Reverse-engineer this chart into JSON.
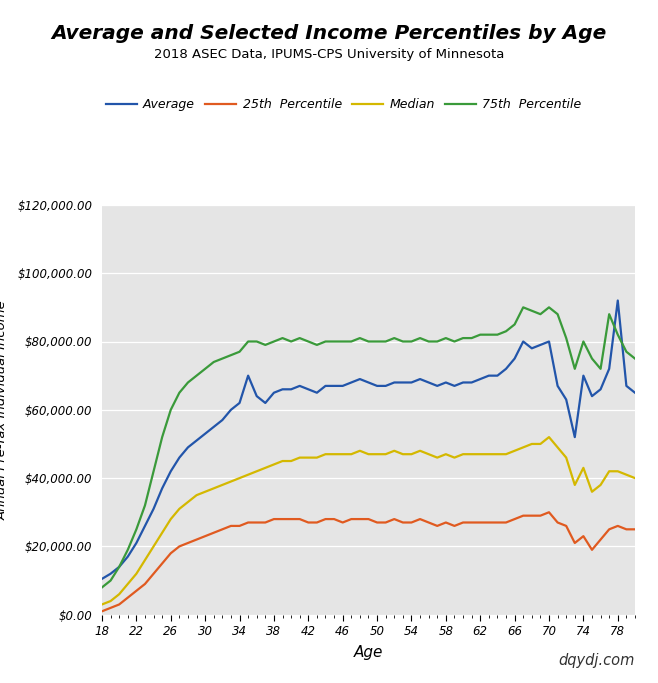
{
  "title": "Average and Selected Income Percentiles by Age",
  "subtitle": "2018 ASEC Data, IPUMS-CPS University of Minnesota",
  "xlabel": "Age",
  "ylabel": "Annual Pre-Tax Individual Income",
  "watermark": "dqydj.com",
  "bg_color": "#e5e5e5",
  "fig_bg_color": "#ffffff",
  "ylim": [
    0,
    120000
  ],
  "ytick_step": 20000,
  "ages": [
    18,
    19,
    20,
    21,
    22,
    23,
    24,
    25,
    26,
    27,
    28,
    29,
    30,
    31,
    32,
    33,
    34,
    35,
    36,
    37,
    38,
    39,
    40,
    41,
    42,
    43,
    44,
    45,
    46,
    47,
    48,
    49,
    50,
    51,
    52,
    53,
    54,
    55,
    56,
    57,
    58,
    59,
    60,
    61,
    62,
    63,
    64,
    65,
    66,
    67,
    68,
    69,
    70,
    71,
    72,
    73,
    74,
    75,
    76,
    77,
    78,
    79,
    80
  ],
  "average": [
    10500,
    12000,
    14000,
    17000,
    21000,
    26000,
    31000,
    37000,
    42000,
    46000,
    49000,
    51000,
    53000,
    55000,
    57000,
    60000,
    62000,
    70000,
    64000,
    62000,
    65000,
    66000,
    66000,
    67000,
    66000,
    65000,
    67000,
    67000,
    67000,
    68000,
    69000,
    68000,
    67000,
    67000,
    68000,
    68000,
    68000,
    69000,
    68000,
    67000,
    68000,
    67000,
    68000,
    68000,
    69000,
    70000,
    70000,
    72000,
    75000,
    80000,
    78000,
    79000,
    80000,
    67000,
    63000,
    52000,
    70000,
    64000,
    66000,
    72000,
    92000,
    67000,
    65000
  ],
  "p25": [
    1000,
    2000,
    3000,
    5000,
    7000,
    9000,
    12000,
    15000,
    18000,
    20000,
    21000,
    22000,
    23000,
    24000,
    25000,
    26000,
    26000,
    27000,
    27000,
    27000,
    28000,
    28000,
    28000,
    28000,
    27000,
    27000,
    28000,
    28000,
    27000,
    28000,
    28000,
    28000,
    27000,
    27000,
    28000,
    27000,
    27000,
    28000,
    27000,
    26000,
    27000,
    26000,
    27000,
    27000,
    27000,
    27000,
    27000,
    27000,
    28000,
    29000,
    29000,
    29000,
    30000,
    27000,
    26000,
    21000,
    23000,
    19000,
    22000,
    25000,
    26000,
    25000,
    25000
  ],
  "median": [
    3000,
    4000,
    6000,
    9000,
    12000,
    16000,
    20000,
    24000,
    28000,
    31000,
    33000,
    35000,
    36000,
    37000,
    38000,
    39000,
    40000,
    41000,
    42000,
    43000,
    44000,
    45000,
    45000,
    46000,
    46000,
    46000,
    47000,
    47000,
    47000,
    47000,
    48000,
    47000,
    47000,
    47000,
    48000,
    47000,
    47000,
    48000,
    47000,
    46000,
    47000,
    46000,
    47000,
    47000,
    47000,
    47000,
    47000,
    47000,
    48000,
    49000,
    50000,
    50000,
    52000,
    49000,
    46000,
    38000,
    43000,
    36000,
    38000,
    42000,
    42000,
    41000,
    40000
  ],
  "p75": [
    8000,
    10000,
    14000,
    19000,
    25000,
    32000,
    42000,
    52000,
    60000,
    65000,
    68000,
    70000,
    72000,
    74000,
    75000,
    76000,
    77000,
    80000,
    80000,
    79000,
    80000,
    81000,
    80000,
    81000,
    80000,
    79000,
    80000,
    80000,
    80000,
    80000,
    81000,
    80000,
    80000,
    80000,
    81000,
    80000,
    80000,
    81000,
    80000,
    80000,
    81000,
    80000,
    81000,
    81000,
    82000,
    82000,
    82000,
    83000,
    85000,
    90000,
    89000,
    88000,
    90000,
    88000,
    81000,
    72000,
    80000,
    75000,
    72000,
    88000,
    82000,
    77000,
    75000
  ],
  "line_colors": {
    "average": "#2255aa",
    "p25": "#e05a20",
    "median": "#d4b800",
    "p75": "#3a9a3a"
  },
  "legend_labels": [
    "Average",
    "25th  Percentile",
    "Median",
    "75th  Percentile"
  ],
  "xtick_values": [
    18,
    22,
    26,
    30,
    34,
    38,
    42,
    46,
    50,
    54,
    58,
    62,
    66,
    70,
    74,
    78
  ]
}
